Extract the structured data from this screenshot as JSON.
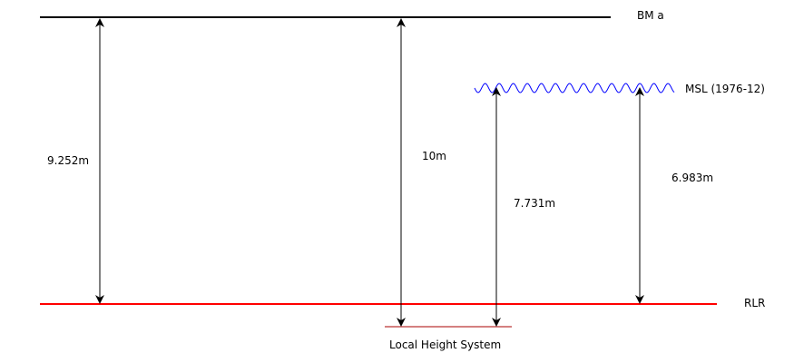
{
  "levels": {
    "bm": {
      "label": "BM a",
      "color": "#000000"
    },
    "msl": {
      "label": "MSL (1976-12)",
      "color": "#0000ff"
    },
    "rlr": {
      "label": "RLR",
      "color": "#ff0000"
    },
    "local": {
      "label": "Local Height System",
      "color": "#aa0000"
    }
  },
  "measurements": [
    {
      "id": "bm-to-rlr",
      "label": "9.252m"
    },
    {
      "id": "bm-to-local",
      "label": "10m"
    },
    {
      "id": "msl-to-local",
      "label": "7.731m"
    },
    {
      "id": "msl-to-rlr",
      "label": "6.983m"
    }
  ]
}
